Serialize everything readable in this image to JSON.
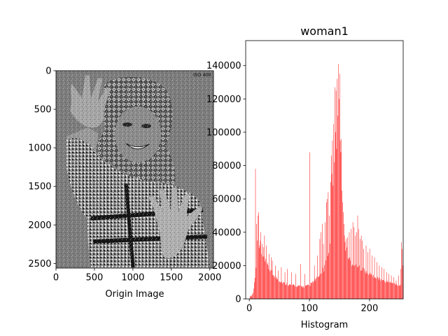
{
  "chart_data": [
    {
      "type": "image",
      "title": "",
      "xlabel": "Origin Image",
      "ylabel": "",
      "xlim": [
        0,
        2048
      ],
      "ylim": [
        2560,
        0
      ],
      "xticks": [
        0,
        500,
        1000,
        1500,
        2000
      ],
      "yticks": [
        0,
        500,
        1000,
        1500,
        2000,
        2500
      ],
      "image_text": "ISO 400",
      "image_description": "grayscale photograph of a smiling woman with curly hair raising both hands"
    },
    {
      "type": "bar",
      "title": "woman1",
      "xlabel": "Histogram",
      "ylabel": "",
      "xlim": [
        -6,
        256
      ],
      "ylim": [
        0,
        155000
      ],
      "xticks": [
        0,
        100,
        200
      ],
      "yticks": [
        0,
        20000,
        40000,
        60000,
        80000,
        100000,
        120000,
        140000
      ],
      "color": "#ff0000",
      "bins": 256,
      "baseline": [
        [
          0,
          0
        ],
        [
          3,
          1500
        ],
        [
          6,
          4000
        ],
        [
          9,
          14000
        ],
        [
          11,
          22000
        ],
        [
          13,
          30000
        ],
        [
          16,
          31000
        ],
        [
          20,
          28000
        ],
        [
          24,
          26000
        ],
        [
          30,
          22000
        ],
        [
          36,
          18000
        ],
        [
          42,
          15000
        ],
        [
          50,
          12000
        ],
        [
          60,
          10000
        ],
        [
          70,
          9000
        ],
        [
          80,
          8500
        ],
        [
          90,
          8000
        ],
        [
          100,
          9000
        ],
        [
          108,
          12000
        ],
        [
          116,
          15000
        ],
        [
          124,
          20000
        ],
        [
          130,
          28000
        ],
        [
          136,
          40000
        ],
        [
          142,
          50000
        ],
        [
          148,
          52000
        ],
        [
          152,
          50000
        ],
        [
          158,
          38000
        ],
        [
          164,
          28000
        ],
        [
          170,
          24000
        ],
        [
          178,
          22000
        ],
        [
          186,
          20000
        ],
        [
          194,
          18000
        ],
        [
          202,
          16000
        ],
        [
          212,
          14000
        ],
        [
          222,
          12000
        ],
        [
          232,
          11000
        ],
        [
          242,
          10000
        ],
        [
          250,
          9000
        ],
        [
          255,
          9000
        ]
      ],
      "peaks": [
        [
          1,
          1500
        ],
        [
          2,
          2000
        ],
        [
          10,
          78000
        ],
        [
          12,
          45000
        ],
        [
          13,
          35000
        ],
        [
          14,
          50000
        ],
        [
          15,
          52000
        ],
        [
          17,
          32000
        ],
        [
          18,
          35000
        ],
        [
          19,
          40000
        ],
        [
          21,
          33000
        ],
        [
          23,
          31000
        ],
        [
          25,
          38000
        ],
        [
          28,
          32000
        ],
        [
          33,
          27000
        ],
        [
          36,
          25000
        ],
        [
          38,
          23000
        ],
        [
          43,
          20000
        ],
        [
          48,
          17000
        ],
        [
          53,
          19000
        ],
        [
          59,
          16000
        ],
        [
          63,
          18000
        ],
        [
          70,
          16000
        ],
        [
          77,
          15000
        ],
        [
          85,
          21000
        ],
        [
          92,
          15000
        ],
        [
          100,
          88000
        ],
        [
          108,
          20000
        ],
        [
          113,
          26000
        ],
        [
          117,
          36000
        ],
        [
          119,
          40000
        ],
        [
          121,
          45000
        ],
        [
          123,
          33000
        ],
        [
          126,
          46000
        ],
        [
          128,
          58000
        ],
        [
          129,
          60000
        ],
        [
          131,
          64000
        ],
        [
          133,
          50000
        ],
        [
          135,
          70000
        ],
        [
          136,
          86000
        ],
        [
          137,
          75000
        ],
        [
          138,
          95000
        ],
        [
          139,
          68000
        ],
        [
          140,
          105000
        ],
        [
          141,
          82000
        ],
        [
          142,
          127000
        ],
        [
          143,
          100000
        ],
        [
          144,
          125000
        ],
        [
          145,
          90000
        ],
        [
          146,
          132000
        ],
        [
          147,
          110000
        ],
        [
          148,
          141000
        ],
        [
          149,
          120000
        ],
        [
          150,
          135000
        ],
        [
          151,
          95000
        ],
        [
          152,
          88000
        ],
        [
          153,
          96000
        ],
        [
          154,
          65000
        ],
        [
          155,
          58000
        ],
        [
          156,
          52000
        ],
        [
          157,
          45000
        ],
        [
          158,
          38000
        ],
        [
          161,
          36000
        ],
        [
          163,
          37000
        ],
        [
          166,
          40000
        ],
        [
          169,
          42000
        ],
        [
          172,
          46000
        ],
        [
          174,
          43000
        ],
        [
          176,
          38000
        ],
        [
          178,
          40000
        ],
        [
          180,
          50000
        ],
        [
          182,
          42000
        ],
        [
          184,
          36000
        ],
        [
          186,
          38000
        ],
        [
          188,
          35000
        ],
        [
          190,
          30000
        ],
        [
          194,
          32000
        ],
        [
          197,
          28000
        ],
        [
          200,
          30000
        ],
        [
          204,
          26000
        ],
        [
          208,
          25000
        ],
        [
          212,
          22000
        ],
        [
          216,
          20000
        ],
        [
          220,
          19000
        ],
        [
          224,
          18000
        ],
        [
          228,
          16000
        ],
        [
          232,
          15000
        ],
        [
          236,
          14000
        ],
        [
          240,
          13000
        ],
        [
          244,
          11000
        ],
        [
          248,
          14000
        ],
        [
          252,
          18000
        ],
        [
          253,
          34000
        ],
        [
          254,
          30000
        ],
        [
          255,
          20000
        ]
      ]
    }
  ]
}
